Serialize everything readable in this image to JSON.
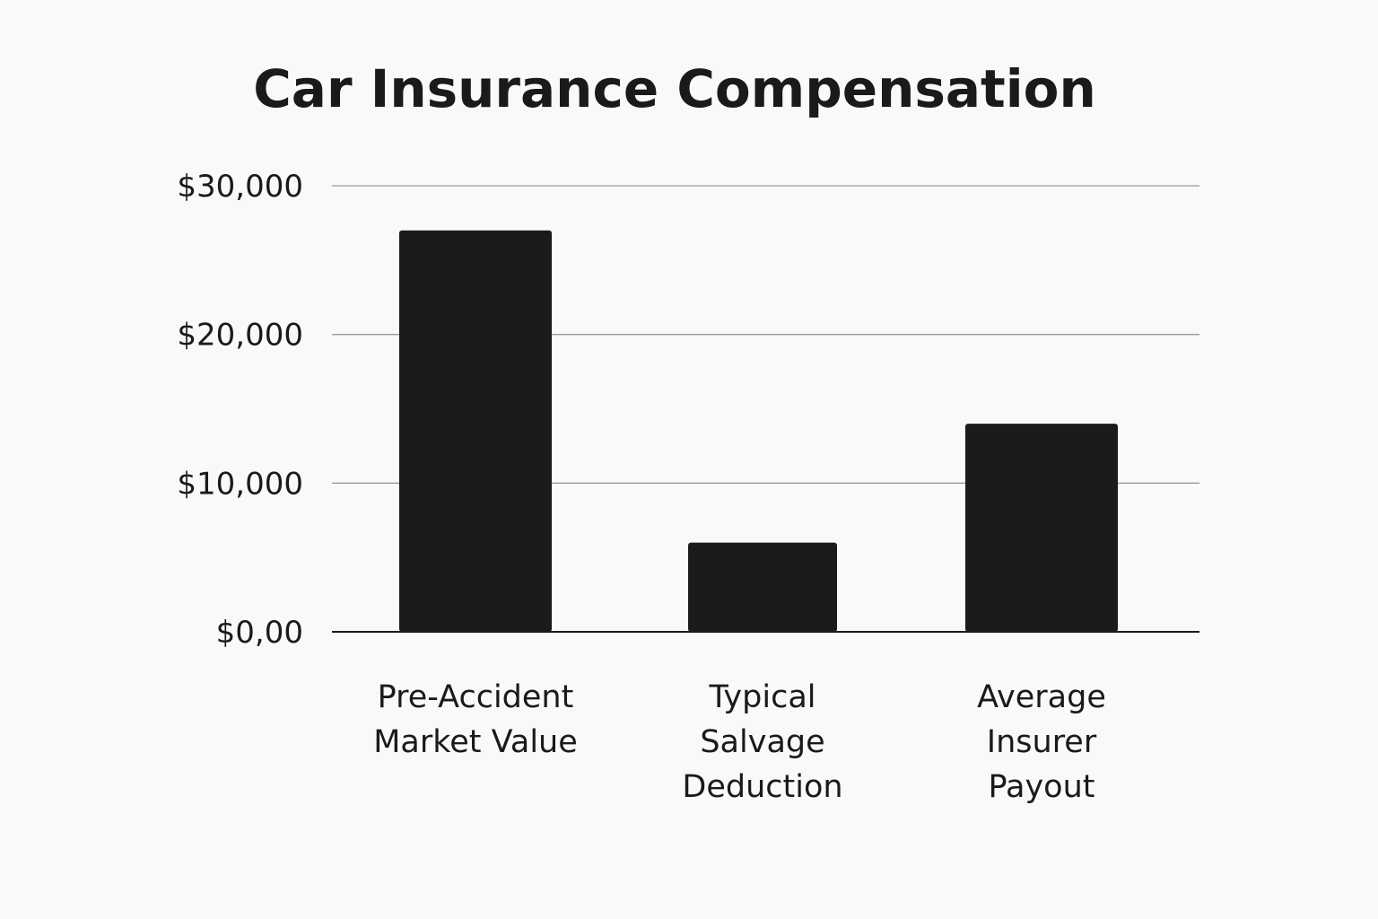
{
  "chart_data": {
    "type": "bar",
    "title": "Car Insurance Compensation",
    "xlabel": "",
    "ylabel": "",
    "categories": [
      [
        "Pre-Accident",
        "Market Value"
      ],
      [
        "Typical",
        "Salvage",
        "Deduction"
      ],
      [
        "Average",
        "Insurer",
        "Payout"
      ]
    ],
    "values": [
      27000,
      6000,
      14000
    ],
    "ylim": [
      0,
      30000
    ],
    "yticks": [
      {
        "value": 0,
        "label": "$0,00"
      },
      {
        "value": 10000,
        "label": "$10,000"
      },
      {
        "value": 20000,
        "label": "$20,000"
      },
      {
        "value": 30000,
        "label": "$30,000"
      }
    ],
    "grid": true,
    "legend": "none",
    "colors": {
      "bar": "#1a1c1a",
      "background": "#f8f9f8",
      "gridline": "#9a9a9a",
      "text": "#1a1a1a"
    }
  }
}
